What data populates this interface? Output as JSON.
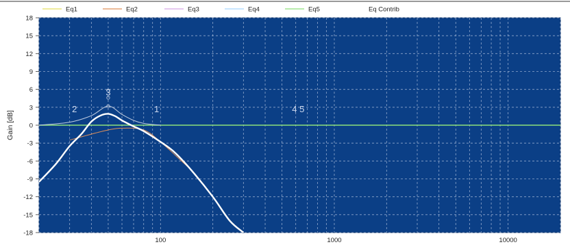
{
  "chart_data": {
    "type": "line",
    "title": "",
    "xlabel": "",
    "ylabel": "Gain [dB]",
    "x_scale": "log",
    "xlim": [
      20,
      20000
    ],
    "ylim": [
      -18,
      18
    ],
    "yticks": [
      18,
      15,
      12,
      9,
      6,
      3,
      0,
      -3,
      -6,
      -9,
      -12,
      -15,
      -18
    ],
    "xtick_labels": [
      "100",
      "1000",
      "10000"
    ],
    "grid": true,
    "legend_position": "top",
    "colors": {
      "plot_bg": "#0b3f86",
      "grid": "#c8d4ea",
      "response": "#ffffff",
      "eq1": "#e6e060",
      "eq2": "#e0905a",
      "eq3": "#d7a6e6",
      "eq4": "#a8d8ff",
      "eq5": "#8ee07a",
      "contrib": "#c0cce0"
    },
    "legend": [
      {
        "name": "Eq1",
        "color": "#e6e060"
      },
      {
        "name": "Eq2",
        "color": "#e0905a"
      },
      {
        "name": "Eq3",
        "color": "#d7a6e6"
      },
      {
        "name": "Eq4",
        "color": "#a8d8ff"
      },
      {
        "name": "Eq5",
        "color": "#8ee07a"
      },
      {
        "name": "Eq Contrib",
        "color": "#ffffff"
      }
    ],
    "series": [
      {
        "id": "response",
        "x": [
          20,
          25,
          30,
          35,
          40,
          45,
          50,
          55,
          60,
          70,
          80,
          100,
          120,
          150,
          200,
          250,
          300
        ],
        "y": [
          -9.5,
          -6.5,
          -3.5,
          -1.5,
          0.6,
          1.6,
          1.9,
          1.5,
          0.8,
          -0.2,
          -1.0,
          -2.8,
          -4.5,
          -7.5,
          -12,
          -16,
          -18
        ]
      },
      {
        "id": "eq-contrib-band",
        "x": [
          20,
          30,
          40,
          50,
          60,
          70,
          80,
          100
        ],
        "y": [
          0,
          0.5,
          1.6,
          3.2,
          1.8,
          0.8,
          0.3,
          0
        ]
      },
      {
        "id": "eq-low-shelf",
        "x": [
          30,
          40,
          50,
          60,
          80,
          100,
          150
        ],
        "y": [
          -2.5,
          -1.5,
          -0.8,
          -0.5,
          -0.8,
          -2.8,
          -7.5
        ]
      },
      {
        "id": "eq-flat",
        "x": [
          20,
          20000
        ],
        "y": [
          0,
          0
        ]
      }
    ],
    "annotations": [
      {
        "text": "2",
        "x": 32,
        "y": 2.2
      },
      {
        "text": "3",
        "x": 50,
        "y": 5
      },
      {
        "text": "1",
        "x": 95,
        "y": 2.2
      },
      {
        "text": "4 5",
        "x": 620,
        "y": 2.2
      }
    ]
  }
}
